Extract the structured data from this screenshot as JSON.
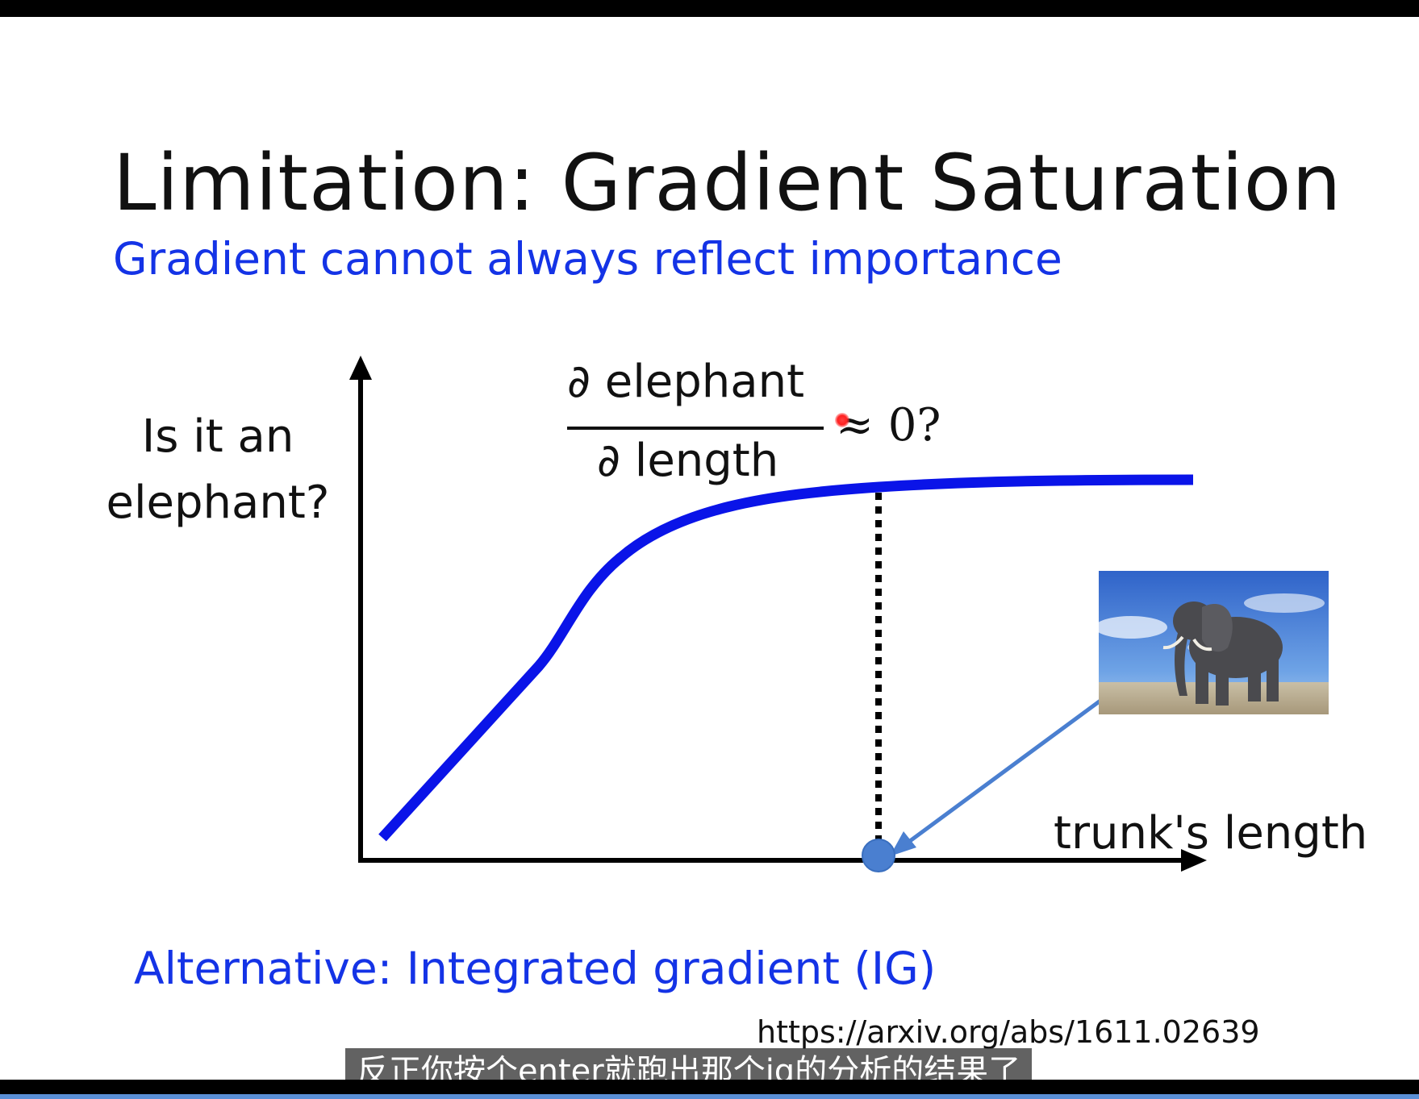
{
  "slide": {
    "title": "Limitation: Gradient Saturation",
    "subtitle": "Gradient cannot always reflect importance",
    "alternative": "Alternative: Integrated gradient (IG)",
    "reference_url": "https://arxiv.org/abs/1611.02639"
  },
  "diagram": {
    "y_axis_label": "Is it an elephant?",
    "x_axis_label": "trunk's length",
    "derivative_numerator": "∂ elephant",
    "derivative_denominator": "∂ length",
    "derivative_relation": "≈ 0?",
    "curve_color": "#0a14e8",
    "marker_color": "#4a7fd0",
    "image_subject": "elephant-photo"
  },
  "video": {
    "subtitle_caption": "反正你按个enter就跑出那个ig的分析的结果了"
  }
}
